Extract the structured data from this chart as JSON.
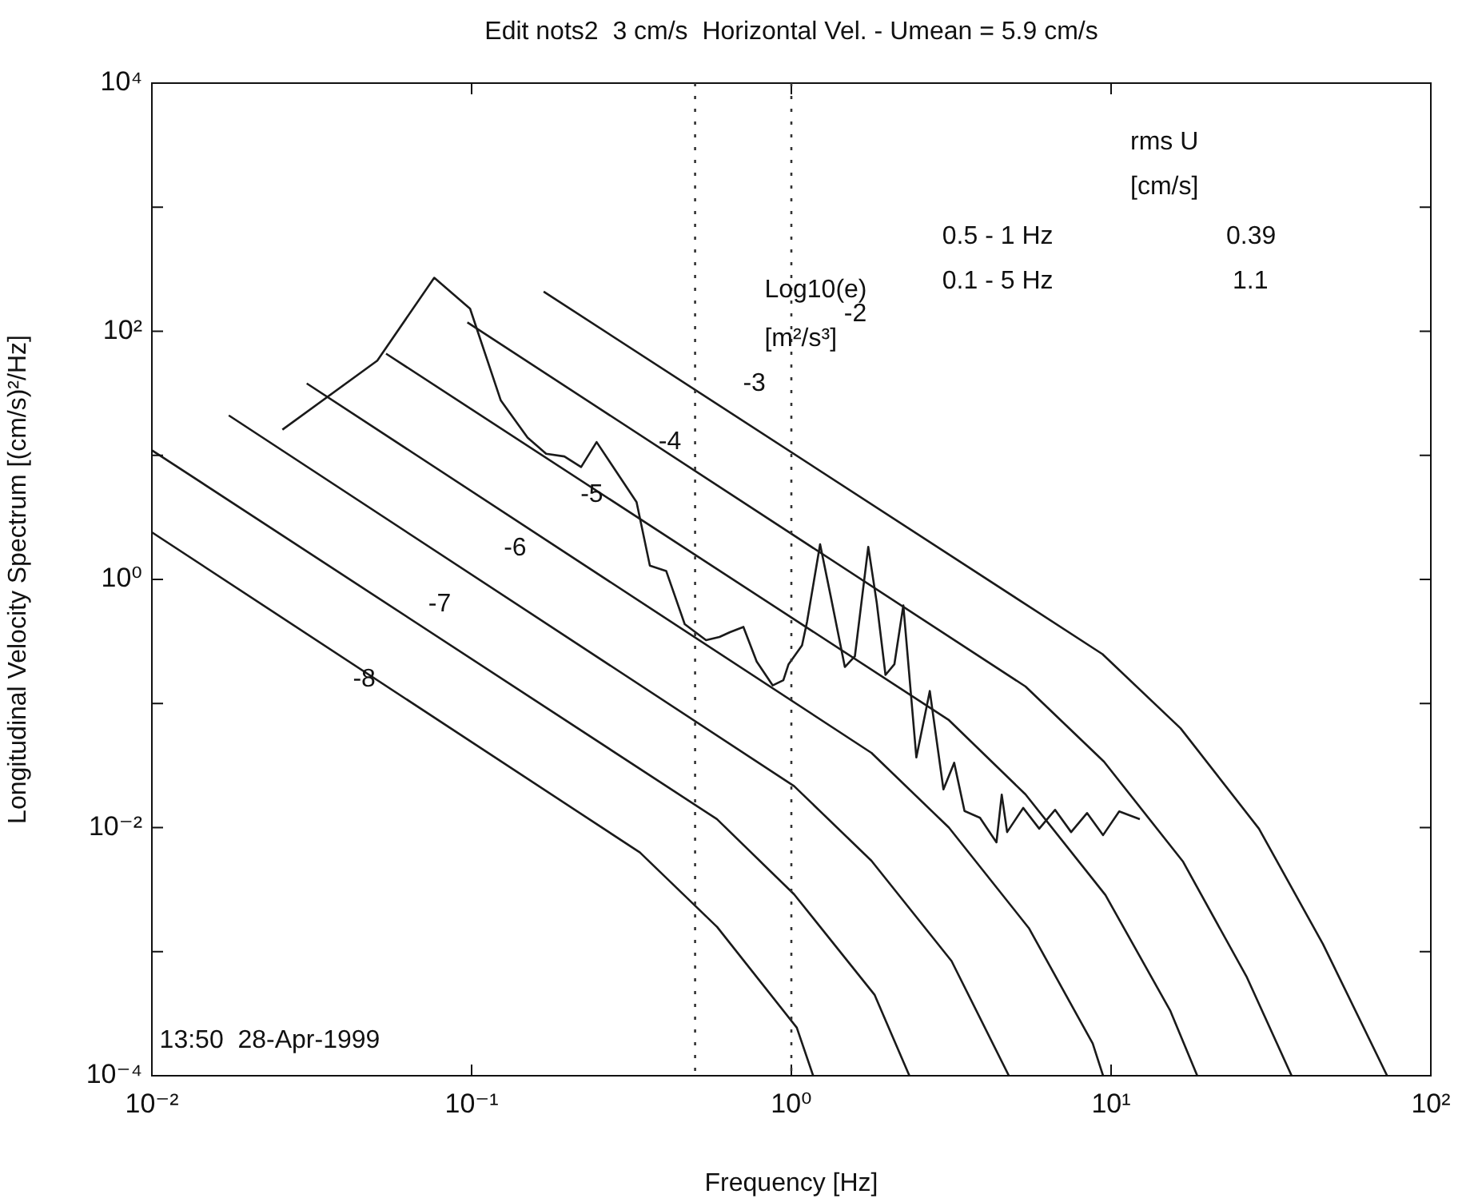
{
  "chart_data": {
    "type": "line",
    "title": "Edit nots2  3 cm/s  Horizontal Vel. - Umean = 5.9 cm/s",
    "xlabel": "Frequency [Hz]",
    "ylabel": "Longitudinal Velocity Spectrum [(cm/s)²/Hz]",
    "log": "xy",
    "grid": false,
    "legend": false,
    "marker": "none",
    "line_style": "solid",
    "xlim": [
      0.01,
      100
    ],
    "xticks": [
      {
        "value": 0.01,
        "label": "10⁻²"
      },
      {
        "value": 0.1,
        "label": "10⁻¹"
      },
      {
        "value": 1,
        "label": "10⁰"
      },
      {
        "value": 10,
        "label": "10¹"
      },
      {
        "value": 100,
        "label": "10²"
      }
    ],
    "ylim": [
      0.0001,
      10000
    ],
    "yticks": [
      {
        "value": 0.0001,
        "label": "10⁻⁴"
      },
      {
        "value": 0.001,
        "label": null
      },
      {
        "value": 0.01,
        "label": "10⁻²"
      },
      {
        "value": 0.1,
        "label": null
      },
      {
        "value": 1,
        "label": "10⁰"
      },
      {
        "value": 10,
        "label": null
      },
      {
        "value": 100,
        "label": "10²"
      },
      {
        "value": 1000,
        "label": null
      },
      {
        "value": 10000,
        "label": "10⁴"
      }
    ],
    "series": [
      {
        "color": "#1a1a1a",
        "x": [
          0.0256,
          0.0507,
          0.0764,
          0.0989,
          0.1234,
          0.1496,
          0.171,
          0.195,
          0.22,
          0.246,
          0.328,
          0.361,
          0.406,
          0.464,
          0.541,
          0.596,
          0.643,
          0.708,
          0.779,
          0.874,
          0.944,
          0.98,
          1.08,
          1.12,
          1.23,
          1.33,
          1.47,
          1.58,
          1.74,
          1.85,
          1.97,
          2.1,
          2.24,
          2.46,
          2.71,
          2.99,
          3.23,
          3.48,
          3.89,
          4.38,
          4.55,
          4.73,
          5.31,
          5.96,
          6.68,
          7.5,
          8.41,
          9.44,
          10.6,
          12.3
        ],
        "values": [
          16.1,
          58,
          270,
          152,
          27.7,
          13.9,
          10.3,
          9.8,
          8.05,
          12.8,
          4.2,
          1.29,
          1.17,
          0.436,
          0.324,
          0.344,
          0.376,
          0.414,
          0.218,
          0.14,
          0.154,
          0.207,
          0.294,
          0.458,
          1.92,
          0.715,
          0.197,
          0.24,
          1.83,
          0.647,
          0.17,
          0.207,
          0.617,
          0.0368,
          0.126,
          0.0203,
          0.0333,
          0.0136,
          0.012,
          0.0076,
          0.0184,
          0.0092,
          0.0144,
          0.0098,
          0.0139,
          0.0092,
          0.0131,
          0.0087,
          0.0135,
          0.0117
        ]
      },
      {
        "color": "#1a1a1a",
        "x": [
          0.168,
          9.4,
          16.5,
          29,
          46,
          73
        ],
        "values": [
          209,
          0.25,
          0.063,
          0.0098,
          0.00115,
          0.0001
        ]
      },
      {
        "color": "#1a1a1a",
        "x": [
          0.097,
          5.4,
          9.5,
          16.8,
          26.6,
          36.7
        ],
        "values": [
          118,
          0.137,
          0.034,
          0.0053,
          0.00062,
          0.0001
        ]
      },
      {
        "color": "#1a1a1a",
        "x": [
          0.054,
          3.1,
          5.4,
          9.6,
          15.3,
          18.6
        ],
        "values": [
          66,
          0.074,
          0.0185,
          0.00286,
          0.000336,
          0.0001
        ]
      },
      {
        "color": "#1a1a1a",
        "x": [
          0.0305,
          1.78,
          3.11,
          5.53,
          8.76,
          9.44
        ],
        "values": [
          38,
          0.04,
          0.01,
          0.00155,
          0.000182,
          0.0001
        ]
      },
      {
        "color": "#1a1a1a",
        "x": [
          0.0174,
          1.02,
          1.78,
          3.17,
          4.79
        ],
        "values": [
          21,
          0.0216,
          0.0054,
          0.00084,
          0.0001
        ]
      },
      {
        "color": "#1a1a1a",
        "x": [
          0.01,
          0.585,
          1.02,
          1.82,
          2.34
        ],
        "values": [
          11,
          0.0117,
          0.0029,
          0.00045,
          0.0001
        ]
      },
      {
        "color": "#1a1a1a",
        "x": [
          0.01,
          0.336,
          0.586,
          1.04,
          1.17
        ],
        "values": [
          2.4,
          0.0063,
          0.00158,
          0.000244,
          0.0001
        ]
      }
    ],
    "ref_lines": [
      {
        "axis": "x",
        "value": 0.5,
        "line_style": "dotted",
        "color": "#333333"
      },
      {
        "axis": "x",
        "value": 1,
        "line_style": "dotted",
        "color": "#333333"
      }
    ],
    "annotations": [
      "-2",
      "-3",
      "-4",
      "-5",
      "-6",
      "-7",
      "-8",
      "Log10(e)",
      "[m²/s³]",
      "rms U",
      "[cm/s]",
      "0.5 - 1 Hz",
      "0.39",
      "0.1 - 5 Hz",
      "1.1",
      "13:50  28-Apr-1999"
    ]
  }
}
